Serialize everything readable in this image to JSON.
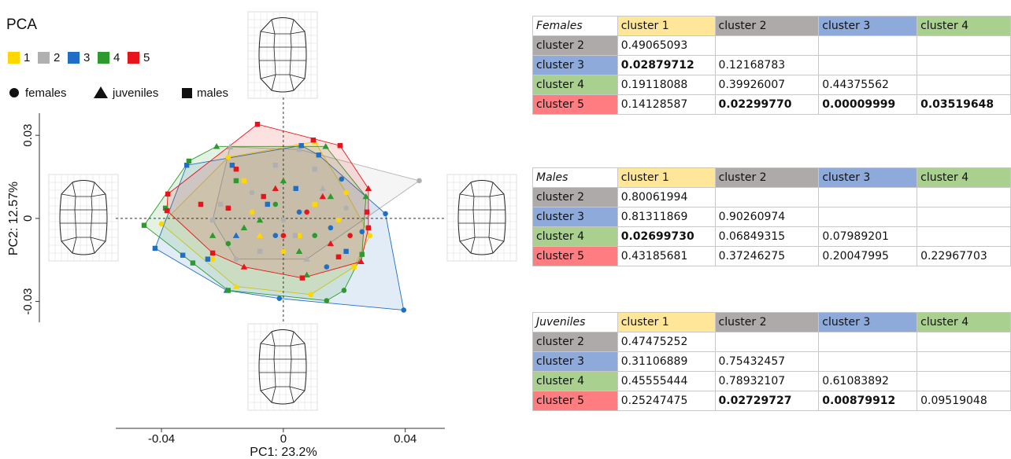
{
  "chart_data": {
    "type": "scatter",
    "title": "PCA",
    "xlabel": "PC1: 23.2%",
    "ylabel": "PC2: 12.57%",
    "xlim": [
      -0.055,
      0.053
    ],
    "ylim": [
      -0.0375,
      0.038
    ],
    "xticks": [
      -0.04,
      0,
      0.04
    ],
    "yticks": [
      -0.03,
      0,
      0.03
    ],
    "shape_legend": [
      "females",
      "juveniles",
      "males"
    ],
    "clusters": [
      {
        "name": "1",
        "color": "#ffd700",
        "points": [
          {
            "x": [
              -0.0181,
              0.0206,
              0.0284,
              0.009,
              -0.04,
              -0.0103,
              0.0,
              0.0181,
              -0.0232
            ],
            "y": [
              0.0221,
              0.0093,
              -0.0062,
              -0.0275,
              -0.002,
              0.0023,
              -0.0119,
              -0.0006,
              -0.0147
            ]
          },
          {
            "x": [
              0.0103,
              -0.0155,
              -0.0077
            ],
            "y": [
              0.0277,
              -0.0246,
              -0.0062
            ]
          },
          {
            "x": [
              0.0232,
              0.0052,
              0.0103,
              -0.0129
            ],
            "y": [
              -0.0175,
              -0.0062,
              0.0051,
              0.0136
            ]
          }
        ]
      },
      {
        "name": "2",
        "color": "#b0b0b0",
        "points": [
          {
            "x": [
              0.0446,
              0.0206,
              -0.0103,
              0.0,
              -0.0155
            ],
            "y": [
              0.0136,
              0.0037,
              0.0093,
              -0.0006,
              -0.0147
            ]
          },
          {
            "x": [
              -0.0175,
              0.0129,
              0.0077
            ],
            "y": [
              0.0258,
              0.0108,
              -0.0147
            ]
          },
          {
            "x": [
              0.0103,
              0.0052,
              -0.0026,
              -0.0206,
              0.0039,
              -0.0077,
              -0.0232
            ],
            "y": [
              0.0178,
              0.0249,
              0.0192,
              0.0051,
              -0.0062,
              -0.0119,
              -0.0006
            ]
          }
        ]
      },
      {
        "name": "3",
        "color": "#1f6fc5",
        "points": [
          {
            "x": [
              0.0335,
              0.0395,
              0.0191,
              0.0142,
              -0.0013,
              -0.0026,
              0.0155,
              0.0258,
              0.0052
            ],
            "y": [
              0.0017,
              -0.0331,
              0.0142,
              -0.0175,
              -0.0289,
              -0.0062,
              -0.0034,
              -0.0048,
              0.0023
            ]
          },
          {
            "x": [
              -0.0186,
              -0.0155
            ],
            "y": [
              -0.026,
              -0.0062
            ]
          },
          {
            "x": [
              -0.0317,
              -0.0168,
              0.0059,
              0.0116,
              -0.0421,
              -0.033,
              -0.0248,
              -0.0052,
              0.0206,
              0.0041
            ],
            "y": [
              0.0192,
              0.0192,
              0.0263,
              0.0229,
              -0.0108,
              -0.0133,
              -0.0147,
              0.0051,
              -0.0119,
              0.0108
            ]
          }
        ]
      },
      {
        "name": "4",
        "color": "#2e9a2e",
        "points": [
          {
            "x": [
              0.0199,
              0.0142,
              -0.0026,
              0.0103,
              -0.0181
            ],
            "y": [
              -0.026,
              -0.0297,
              0.0051,
              -0.0062,
              -0.0091
            ]
          },
          {
            "x": [
              -0.0219,
              0.0139,
              0.0271,
              -0.0077,
              0.0052,
              -0.0129,
              0.0,
              0.0155,
              -0.0232,
              0.0077
            ],
            "y": [
              0.026,
              0.026,
              0.0079,
              -0.0006,
              -0.0119,
              -0.0034,
              0.0136,
              0.0079,
              -0.0062,
              -0.0204
            ]
          },
          {
            "x": [
              -0.031,
              0.0258,
              -0.0181,
              -0.0297,
              -0.0457,
              -0.0387,
              -0.0155
            ],
            "y": [
              0.0207,
              -0.013,
              -0.026,
              -0.0161,
              -0.0025,
              0.0037,
              0.0136
            ]
          }
        ]
      },
      {
        "name": "5",
        "color": "#e8141b",
        "points": [
          {
            "x": [
              0.0077,
              0.0,
              0.0219
            ],
            "y": [
              0.0023,
              -0.0062,
              -0.0062
            ]
          },
          {
            "x": [
              0.0279,
              0.0255,
              -0.0129,
              -0.0026,
              0.0129,
              0.0155
            ],
            "y": [
              0.0108,
              -0.0156,
              -0.0175,
              0.0108,
              0.0079,
              -0.0091
            ]
          },
          {
            "x": [
              -0.0085,
              0.0098,
              0.0186,
              0.0274,
              0.0279,
              0.0181,
              0.0062,
              -0.0232,
              -0.0379,
              -0.0382,
              -0.0155,
              -0.0065,
              -0.0271,
              -0.0181
            ],
            "y": [
              0.034,
              0.0283,
              0.0263,
              0.0023,
              -0.0034,
              -0.0139,
              -0.0215,
              -0.0125,
              0.0088,
              0.0028,
              0.0178,
              0.0079,
              0.0051,
              0.0037
            ]
          }
        ]
      }
    ]
  },
  "tables": {
    "label_colors": [
      "#ffe699",
      "#aeaaaa",
      "#8eaadb",
      "#a9d08e",
      "#ff7c80"
    ],
    "items": [
      {
        "title": "Females",
        "columns": [
          "cluster 1",
          "cluster 2",
          "cluster 3",
          "cluster 4"
        ],
        "rows": [
          {
            "label": "cluster 2",
            "cells": [
              "0.49065093"
            ],
            "bold": []
          },
          {
            "label": "cluster 3",
            "cells": [
              "0.02879712",
              "0.12168783"
            ],
            "bold": [
              0
            ]
          },
          {
            "label": "cluster 4",
            "cells": [
              "0.19118088",
              "0.39926007",
              "0.44375562"
            ],
            "bold": []
          },
          {
            "label": "cluster 5",
            "cells": [
              "0.14128587",
              "0.02299770",
              "0.00009999",
              "0.03519648"
            ],
            "bold": [
              1,
              2,
              3
            ]
          }
        ]
      },
      {
        "title": "Males",
        "columns": [
          "cluster 1",
          "cluster 2",
          "cluster 3",
          "cluster 4"
        ],
        "rows": [
          {
            "label": "cluster 2",
            "cells": [
              "0.80061994"
            ],
            "bold": []
          },
          {
            "label": "cluster 3",
            "cells": [
              "0.81311869",
              "0.90260974"
            ],
            "bold": []
          },
          {
            "label": "cluster 4",
            "cells": [
              "0.02699730",
              "0.06849315",
              "0.07989201"
            ],
            "bold": [
              0
            ]
          },
          {
            "label": "cluster 5",
            "cells": [
              "0.43185681",
              "0.37246275",
              "0.20047995",
              "0.22967703"
            ],
            "bold": []
          }
        ]
      },
      {
        "title": "Juveniles",
        "columns": [
          "cluster 1",
          "cluster 2",
          "cluster 3",
          "cluster 4"
        ],
        "rows": [
          {
            "label": "cluster 2",
            "cells": [
              "0.47475252"
            ],
            "bold": []
          },
          {
            "label": "cluster 3",
            "cells": [
              "0.31106889",
              "0.75432457"
            ],
            "bold": []
          },
          {
            "label": "cluster 4",
            "cells": [
              "0.45555444",
              "0.78932107",
              "0.61083892"
            ],
            "bold": []
          },
          {
            "label": "cluster 5",
            "cells": [
              "0.25247475",
              "0.02729727",
              "0.00879912",
              "0.09519048"
            ],
            "bold": [
              1,
              2
            ]
          }
        ]
      }
    ]
  }
}
